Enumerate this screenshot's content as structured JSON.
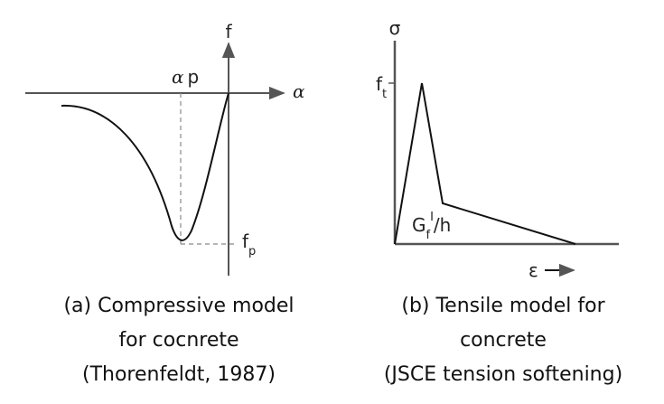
{
  "panels": [
    {
      "axis_y": "f",
      "axis_x": "α",
      "peak_x": {
        "base": "α",
        "sub": "p"
      },
      "peak_y": {
        "base": "f",
        "sub": "p"
      },
      "caption": [
        "(a) Compressive model",
        "for cocnrete",
        "(Thorenfeldt, 1987)"
      ]
    },
    {
      "axis_y": "σ",
      "axis_x": "ε",
      "peak_y": {
        "base": "f",
        "sub": "t"
      },
      "energy": {
        "base": "G",
        "sub": "f",
        "sup": "I",
        "rest": "/h"
      },
      "caption": [
        "(b) Tensile model for",
        "concrete",
        "(JSCE tension softening)"
      ]
    }
  ]
}
